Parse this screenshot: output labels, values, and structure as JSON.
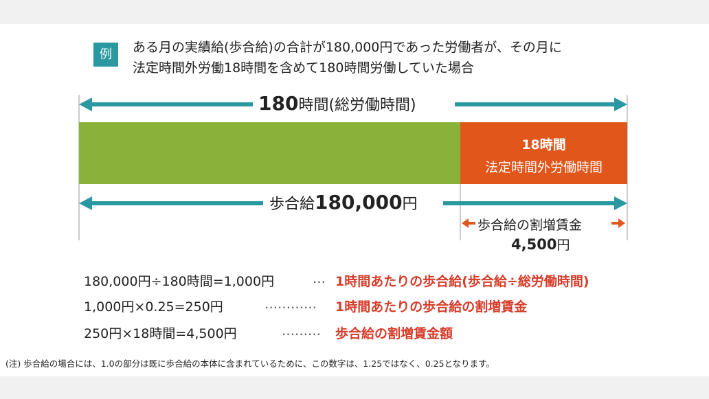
{
  "header": {
    "badge": "例",
    "lines": [
      "ある月の実績給(歩合給)の合計が180,000円であった労働者が、その月に",
      "法定時間外労働18時間を含めて180時間労働していた場合"
    ]
  },
  "diagram": {
    "total_hours": {
      "number": "180",
      "unit": "時間(総労働時間)"
    },
    "overtime_bar": {
      "hours": "18時間",
      "label": "法定時間外労働時間"
    },
    "pay": {
      "prefix": "歩合給",
      "number": "180,000",
      "unit": "円"
    },
    "premium": {
      "label": "歩合給の割増賃金",
      "number": "4,500",
      "unit": "円"
    }
  },
  "formulas": [
    {
      "expression": "180,000円÷180時間=1,000円",
      "dots": "…",
      "description": "1時間あたりの歩合給(歩合給÷総労働時間)"
    },
    {
      "expression": "1,000円×0.25=250円",
      "dots": "…………",
      "description": "1時間あたりの歩合給の割増賃金"
    },
    {
      "expression": "250円×18時間=4,500円",
      "dots": "………",
      "description": "歩合給の割増賃金額"
    }
  ],
  "note": "(注) 歩合給の場合には、1.0の部分は既に歩合給の本体に含まれているために、この数字は、1.25ではなく、0.25となります。"
}
